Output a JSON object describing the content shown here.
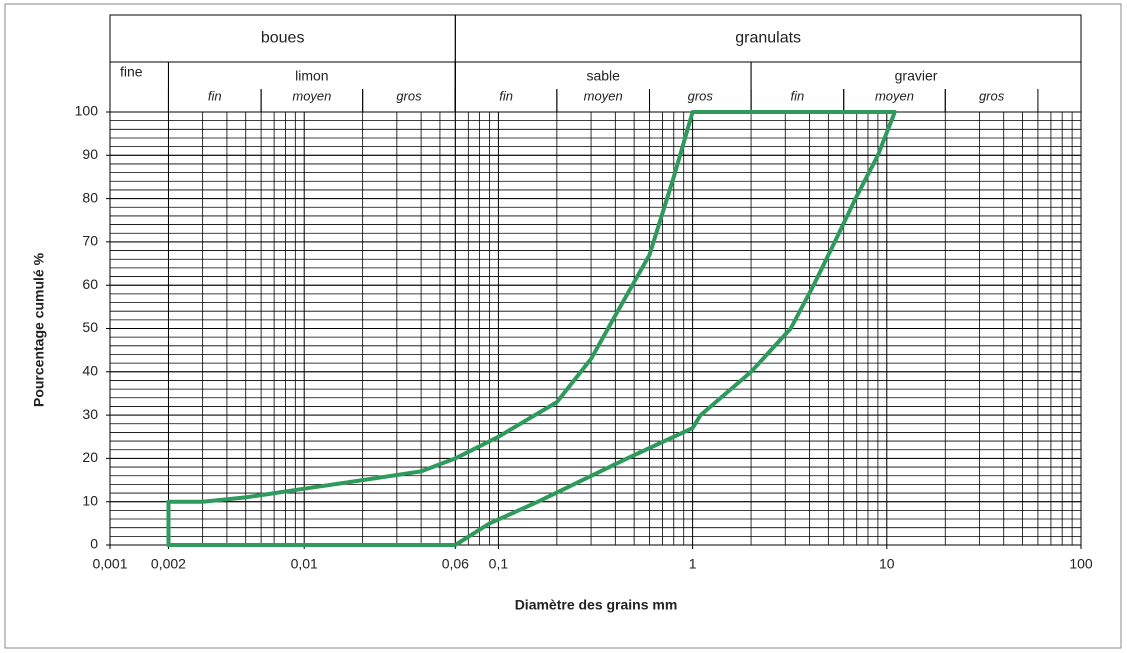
{
  "chart_data": {
    "type": "line",
    "x_label": "Diamètre des grains mm",
    "y_label": "Pourcentage cumulé %",
    "x_scale": "log",
    "grid": true,
    "xlim": [
      0.001,
      100
    ],
    "ylim": [
      0,
      100
    ],
    "xticks": [
      {
        "value": 0.001,
        "label": "0,001"
      },
      {
        "value": 0.002,
        "label": "0,002"
      },
      {
        "value": 0.01,
        "label": "0,01"
      },
      {
        "value": 0.06,
        "label": "0,06"
      },
      {
        "value": 0.1,
        "label": "0,1"
      },
      1,
      10,
      100
    ],
    "yticks": [
      0,
      10,
      20,
      30,
      40,
      50,
      60,
      70,
      80,
      90,
      100
    ],
    "zones": [
      {
        "label": "boues",
        "range": [
          0.001,
          0.06
        ],
        "row": 1
      },
      {
        "label": "granulats",
        "range": [
          0.06,
          100
        ],
        "row": 1
      },
      {
        "label": "fine",
        "range": [
          0.001,
          0.002
        ],
        "row": 2
      },
      {
        "label": "limon",
        "range": [
          0.002,
          0.06
        ],
        "row": 2
      },
      {
        "label": "sable",
        "range": [
          0.06,
          2
        ],
        "row": 2
      },
      {
        "label": "gravier",
        "range": [
          2,
          100
        ],
        "row": 2
      },
      {
        "label": "fin",
        "range": [
          0.002,
          0.006
        ],
        "row": 3
      },
      {
        "label": "moyen",
        "range": [
          0.006,
          0.02
        ],
        "row": 3
      },
      {
        "label": "gros",
        "range": [
          0.02,
          0.06
        ],
        "row": 3
      },
      {
        "label": "fin",
        "range": [
          0.06,
          0.2
        ],
        "row": 3
      },
      {
        "label": "moyen",
        "range": [
          0.2,
          0.6
        ],
        "row": 3
      },
      {
        "label": "gros",
        "range": [
          0.6,
          2
        ],
        "row": 3
      },
      {
        "label": "fin",
        "range": [
          2,
          6
        ],
        "row": 3
      },
      {
        "label": "moyen",
        "range": [
          6,
          20
        ],
        "row": 3
      },
      {
        "label": "gros",
        "range": [
          20,
          60
        ],
        "row": 3
      }
    ],
    "series": [
      {
        "color": "#2e9a5c",
        "x": [
          0.06,
          0.002,
          0.002,
          0.003,
          0.005,
          0.01,
          0.02,
          0.04,
          0.06,
          0.1,
          0.2,
          0.3,
          0.4,
          0.6,
          0.8,
          1,
          11,
          9,
          6.9,
          5.4,
          4.2,
          3.2,
          2,
          1.1,
          1,
          0.46,
          0.16,
          0.09,
          0.06
        ],
        "values": [
          0,
          0,
          10,
          10,
          11,
          13,
          15,
          17,
          20,
          25,
          33,
          43,
          53,
          67,
          85,
          100,
          100,
          90,
          80,
          70,
          60,
          50,
          40,
          30,
          27,
          20,
          10,
          5,
          0
        ]
      }
    ]
  }
}
